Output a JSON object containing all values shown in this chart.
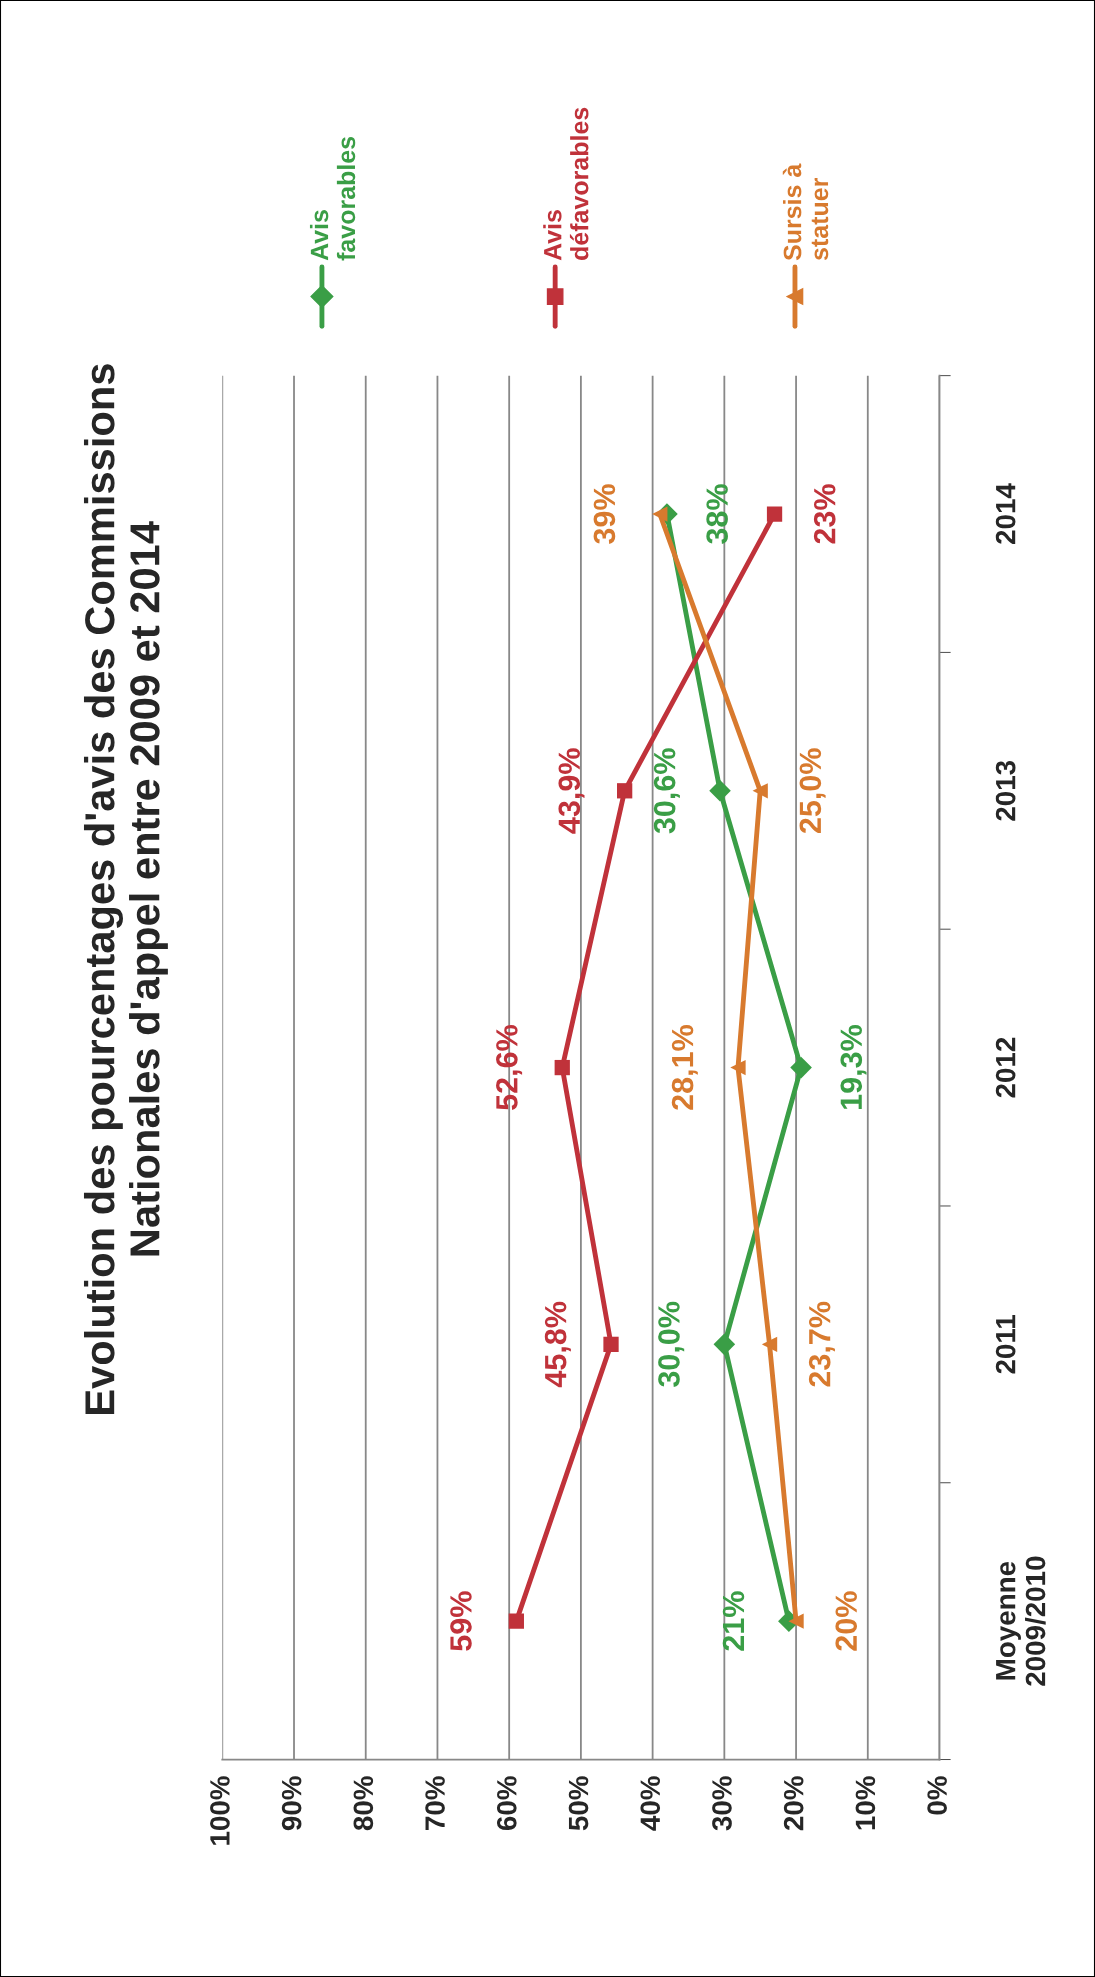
{
  "chart_data": {
    "type": "line",
    "orientation": "horizontal",
    "title": "Evolution des pourcentages d'avis des Commissions\nNationales d'appel entre 2009 et 2014",
    "categories": [
      "2014",
      "2013",
      "2012",
      "2011",
      "Moyenne\n2009/2010"
    ],
    "series": [
      {
        "name": "Avis\nfavorables",
        "color": "#3a9e46",
        "marker": "diamond",
        "values": [
          38,
          30.6,
          19.3,
          30.0,
          21
        ],
        "value_labels": [
          "38%",
          "30,6%",
          "19,3%",
          "30,0%",
          "21%"
        ]
      },
      {
        "name": "Avis\ndéfavorables",
        "color": "#c0323a",
        "marker": "square",
        "values": [
          23,
          43.9,
          52.6,
          45.8,
          59
        ],
        "value_labels": [
          "23%",
          "43,9%",
          "52,6%",
          "45,8%",
          "59%"
        ]
      },
      {
        "name": "Sursis à\nstatuer",
        "color": "#d87a2e",
        "marker": "triangle",
        "values": [
          39,
          25.0,
          28.1,
          23.7,
          20
        ],
        "value_labels": [
          "39%",
          "25,0%",
          "28,1%",
          "23,7%",
          "20%"
        ]
      }
    ],
    "xlim": [
      100,
      0
    ],
    "xticks": [
      {
        "value": 100,
        "label": "100%"
      },
      {
        "value": 90,
        "label": "90%"
      },
      {
        "value": 80,
        "label": "80%"
      },
      {
        "value": 70,
        "label": "70%"
      },
      {
        "value": 60,
        "label": "60%"
      },
      {
        "value": 50,
        "label": "50%"
      },
      {
        "value": 40,
        "label": "40%"
      },
      {
        "value": 30,
        "label": "30%"
      },
      {
        "value": 20,
        "label": "20%"
      },
      {
        "value": 10,
        "label": "10%"
      },
      {
        "value": 0,
        "label": "0%"
      }
    ],
    "grid": "x",
    "legend": "top"
  }
}
